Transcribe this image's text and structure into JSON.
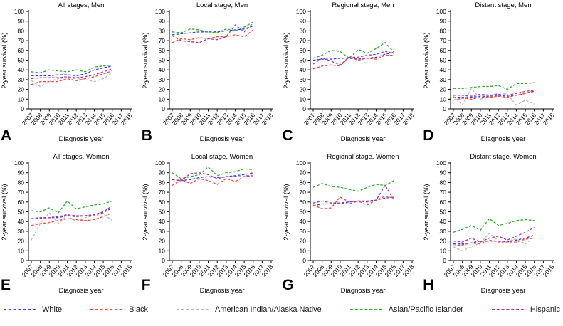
{
  "figure": {
    "ylabel": "2-year survival (%)",
    "xlabel": "Diagnosis year",
    "x_axis_ticks": [
      2007,
      2008,
      2009,
      2010,
      2011,
      2012,
      2013,
      2014,
      2015,
      2016,
      2017,
      2018
    ],
    "ylim": [
      0,
      100
    ],
    "ytick_step": 10,
    "line_style": "dashed",
    "legend_position": "bottom",
    "legend": [
      {
        "name": "White",
        "color": "#3a3ae6"
      },
      {
        "name": "Black",
        "color": "#ff4040"
      },
      {
        "name": "American Indian/Alaska Native",
        "color": "#b8b8b8"
      },
      {
        "name": "Asian/Pacific Islander",
        "color": "#2eaa2e"
      },
      {
        "name": "Hispanic",
        "color": "#a038a8"
      }
    ]
  },
  "chart_data": [
    {
      "type": "line",
      "panel_label": "A",
      "title": "All stages, Men",
      "xlabel": "Diagnosis year",
      "ylabel": "2-year survival (%)",
      "ylim": [
        0,
        100
      ],
      "x": [
        2007,
        2008,
        2009,
        2010,
        2011,
        2012,
        2013,
        2014,
        2015,
        2016
      ],
      "series": [
        {
          "name": "White",
          "values": [
            34,
            34,
            34,
            35,
            35,
            34,
            36,
            40,
            42,
            44
          ]
        },
        {
          "name": "Black",
          "values": [
            25,
            28,
            28,
            28,
            31,
            29,
            31,
            33,
            36,
            39
          ]
        },
        {
          "name": "American Indian/Alaska Native",
          "values": [
            29,
            23,
            28,
            31,
            32,
            31,
            30,
            28,
            31,
            37
          ]
        },
        {
          "name": "Asian/Pacific Islander",
          "values": [
            38,
            37,
            40,
            39,
            38,
            40,
            38,
            43,
            44,
            45
          ]
        },
        {
          "name": "Hispanic",
          "values": [
            31,
            32,
            32,
            32,
            33,
            32,
            33,
            35,
            38,
            41
          ]
        }
      ]
    },
    {
      "type": "line",
      "panel_label": "B",
      "title": "Local stage, Men",
      "xlabel": "Diagnosis year",
      "ylabel": "2-year survival (%)",
      "ylim": [
        0,
        100
      ],
      "x": [
        2007,
        2008,
        2009,
        2010,
        2011,
        2012,
        2013,
        2014,
        2015,
        2016
      ],
      "series": [
        {
          "name": "White",
          "values": [
            76,
            77,
            78,
            79,
            79,
            79,
            80,
            81,
            82,
            85
          ]
        },
        {
          "name": "Black",
          "values": [
            68,
            72,
            71,
            73,
            72,
            74,
            74,
            76,
            74,
            81
          ]
        },
        {
          "name": "Asian/Pacific Islander",
          "values": [
            79,
            78,
            82,
            81,
            79,
            78,
            82,
            80,
            84,
            89
          ]
        },
        {
          "name": "Hispanic",
          "values": [
            75,
            70,
            69,
            68,
            72,
            71,
            74,
            86,
            79,
            88
          ]
        }
      ]
    },
    {
      "type": "line",
      "panel_label": "C",
      "title": "Regional stage, Men",
      "xlabel": "Diagnosis year",
      "ylabel": "2-year survival (%)",
      "ylim": [
        0,
        100
      ],
      "x": [
        2007,
        2008,
        2009,
        2010,
        2011,
        2012,
        2013,
        2014,
        2015,
        2016
      ],
      "series": [
        {
          "name": "White",
          "values": [
            50,
            51,
            51,
            52,
            52,
            51,
            52,
            53,
            56,
            58
          ]
        },
        {
          "name": "Black",
          "values": [
            41,
            44,
            45,
            44,
            53,
            50,
            52,
            51,
            55,
            55
          ]
        },
        {
          "name": "Asian/Pacific Islander",
          "values": [
            52,
            55,
            60,
            59,
            52,
            61,
            57,
            62,
            68,
            58
          ]
        },
        {
          "name": "Hispanic",
          "values": [
            46,
            52,
            49,
            45,
            53,
            53,
            55,
            56,
            59,
            57
          ]
        }
      ]
    },
    {
      "type": "line",
      "panel_label": "D",
      "title": "Distant stage, Men",
      "xlabel": "Diagnosis year",
      "ylabel": "2-year survival (%)",
      "ylim": [
        0,
        100
      ],
      "x": [
        2007,
        2008,
        2009,
        2010,
        2011,
        2012,
        2013,
        2014,
        2015,
        2016
      ],
      "series": [
        {
          "name": "White",
          "values": [
            12,
            12,
            12,
            13,
            13,
            14,
            13,
            14,
            16,
            18
          ]
        },
        {
          "name": "Black",
          "values": [
            9,
            11,
            10,
            12,
            12,
            13,
            12,
            14,
            16,
            19
          ]
        },
        {
          "name": "American Indian/Alaska Native",
          "values": [
            13,
            4,
            21,
            10,
            12,
            17,
            15,
            4,
            9,
            5
          ]
        },
        {
          "name": "Asian/Pacific Islander",
          "values": [
            21,
            21,
            22,
            23,
            23,
            24,
            20,
            26,
            26,
            27
          ]
        },
        {
          "name": "Hispanic",
          "values": [
            14,
            14,
            13,
            15,
            14,
            15,
            14,
            16,
            18,
            19
          ]
        }
      ]
    },
    {
      "type": "line",
      "panel_label": "E",
      "title": "All stages, Women",
      "xlabel": "Diagnosis year",
      "ylabel": "2-year survival (%)",
      "ylim": [
        0,
        100
      ],
      "x": [
        2007,
        2008,
        2009,
        2010,
        2011,
        2012,
        2013,
        2014,
        2015,
        2016
      ],
      "series": [
        {
          "name": "White",
          "values": [
            43,
            43,
            44,
            44,
            46,
            45,
            46,
            47,
            49,
            54
          ]
        },
        {
          "name": "Black",
          "values": [
            36,
            38,
            39,
            41,
            43,
            42,
            41,
            42,
            45,
            49
          ]
        },
        {
          "name": "American Indian/Alaska Native",
          "values": [
            21,
            38,
            49,
            38,
            46,
            40,
            44,
            46,
            48,
            41
          ]
        },
        {
          "name": "Asian/Pacific Islander",
          "values": [
            51,
            50,
            54,
            49,
            61,
            53,
            55,
            57,
            58,
            61
          ]
        },
        {
          "name": "Hispanic",
          "values": [
            43,
            44,
            44,
            45,
            47,
            46,
            46,
            47,
            50,
            56
          ]
        }
      ]
    },
    {
      "type": "line",
      "panel_label": "F",
      "title": "Local stage, Women",
      "xlabel": "Diagnosis year",
      "ylabel": "2-year survival (%)",
      "ylim": [
        0,
        100
      ],
      "x": [
        2007,
        2008,
        2009,
        2010,
        2011,
        2012,
        2013,
        2014,
        2015,
        2016
      ],
      "series": [
        {
          "name": "White",
          "values": [
            83,
            82,
            83,
            85,
            86,
            85,
            86,
            87,
            88,
            90
          ]
        },
        {
          "name": "Black",
          "values": [
            77,
            83,
            79,
            84,
            82,
            78,
            84,
            81,
            86,
            89
          ]
        },
        {
          "name": "Asian/Pacific Islander",
          "values": [
            90,
            84,
            86,
            88,
            96,
            87,
            90,
            91,
            94,
            93
          ]
        },
        {
          "name": "Hispanic",
          "values": [
            83,
            82,
            89,
            90,
            88,
            84,
            86,
            86,
            86,
            87
          ]
        }
      ]
    },
    {
      "type": "line",
      "panel_label": "G",
      "title": "Regional stage, Women",
      "xlabel": "Diagnosis year",
      "ylabel": "2-year survival (%)",
      "ylim": [
        0,
        100
      ],
      "x": [
        2007,
        2008,
        2009,
        2010,
        2011,
        2012,
        2013,
        2014,
        2015,
        2016
      ],
      "series": [
        {
          "name": "White",
          "values": [
            56,
            58,
            58,
            59,
            60,
            61,
            61,
            62,
            64,
            65
          ]
        },
        {
          "name": "Black",
          "values": [
            57,
            53,
            54,
            65,
            60,
            61,
            57,
            62,
            66,
            64
          ]
        },
        {
          "name": "Asian/Pacific Islander",
          "values": [
            75,
            79,
            76,
            75,
            73,
            71,
            75,
            78,
            77,
            82
          ]
        },
        {
          "name": "Hispanic",
          "values": [
            59,
            61,
            59,
            59,
            58,
            61,
            60,
            62,
            77,
            62
          ]
        }
      ]
    },
    {
      "type": "line",
      "panel_label": "H",
      "title": "Distant stage, Women",
      "xlabel": "Diagnosis year",
      "ylabel": "2-year survival (%)",
      "ylim": [
        0,
        100
      ],
      "x": [
        2007,
        2008,
        2009,
        2010,
        2011,
        2012,
        2013,
        2014,
        2015,
        2016
      ],
      "series": [
        {
          "name": "White",
          "values": [
            17,
            17,
            18,
            20,
            20,
            20,
            19,
            21,
            23,
            26
          ]
        },
        {
          "name": "Black",
          "values": [
            15,
            16,
            18,
            17,
            21,
            19,
            19,
            19,
            22,
            23
          ]
        },
        {
          "name": "American Indian/Alaska Native",
          "values": [
            14,
            10,
            14,
            18,
            28,
            20,
            20,
            22,
            17,
            24
          ]
        },
        {
          "name": "Asian/Pacific Islander",
          "values": [
            29,
            32,
            36,
            31,
            43,
            36,
            38,
            41,
            42,
            41
          ]
        },
        {
          "name": "Hispanic",
          "values": [
            20,
            19,
            23,
            19,
            23,
            25,
            21,
            25,
            29,
            34
          ]
        }
      ]
    }
  ]
}
